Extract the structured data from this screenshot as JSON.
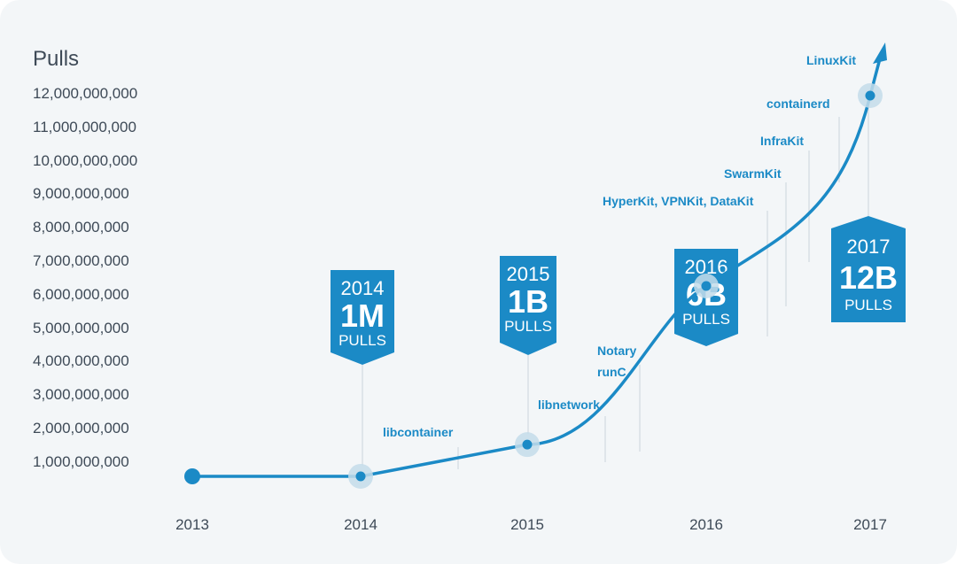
{
  "chart_data": {
    "type": "line",
    "ylabel": "Pulls",
    "x_ticks": [
      "2013",
      "2014",
      "2015",
      "2016",
      "2017"
    ],
    "y_ticks": [
      "1,000,000,000",
      "2,000,000,000",
      "3,000,000,000",
      "4,000,000,000",
      "5,000,000,000",
      "6,000,000,000",
      "7,000,000,000",
      "8,000,000,000",
      "9,000,000,000",
      "10,000,000,000",
      "11,000,000,000",
      "12,000,000,000"
    ],
    "xlim": [
      2013,
      2017.3
    ],
    "ylim": [
      0,
      12500000000
    ],
    "series": [
      {
        "values": [
          {
            "x": 2013.0,
            "y": 0
          },
          {
            "x": 2014.0,
            "y": 1000000
          },
          {
            "x": 2015.0,
            "y": 1000000000
          },
          {
            "x": 2016.0,
            "y": 6000000000
          },
          {
            "x": 2017.0,
            "y": 12000000000
          }
        ]
      }
    ],
    "milestones": [
      {
        "x": 2014.0,
        "y": 1000000,
        "year": "2014",
        "value": "1M",
        "unit": "PULLS",
        "color": "#1b8ac6"
      },
      {
        "x": 2015.0,
        "y": 1000000000,
        "year": "2015",
        "value": "1B",
        "unit": "PULLS",
        "color": "#1b8ac6"
      },
      {
        "x": 2016.0,
        "y": 6000000000,
        "year": "2016",
        "value": "6B",
        "unit": "PULLS",
        "color": "#1b8ac6"
      },
      {
        "x": 2017.0,
        "y": 12000000000,
        "year": "2017",
        "value": "12B",
        "unit": "PULLS",
        "color": "#1b8ac6"
      }
    ],
    "annotations": [
      {
        "text": "libcontainer",
        "x": 2014.6
      },
      {
        "text": "libnetwork",
        "x": 2015.45
      },
      {
        "text": "runC",
        "x": 2015.7
      },
      {
        "text": "Notary",
        "x": 2015.7
      },
      {
        "text": "HyperKit, VPNKit, DataKit",
        "x": 2016.4
      },
      {
        "text": "SwarmKit",
        "x": 2016.55
      },
      {
        "text": "InfraKit",
        "x": 2016.7
      },
      {
        "text": "containerd",
        "x": 2016.9
      },
      {
        "text": "LinuxKit",
        "x": 2017.0
      }
    ],
    "colors": {
      "line": "#1b8ac6",
      "banner": "#1b8ac6",
      "halo": "#c3dcea",
      "annotation": "#1b8ac6",
      "ticks": "#3e4a57",
      "leader": "#d2dae1"
    }
  }
}
